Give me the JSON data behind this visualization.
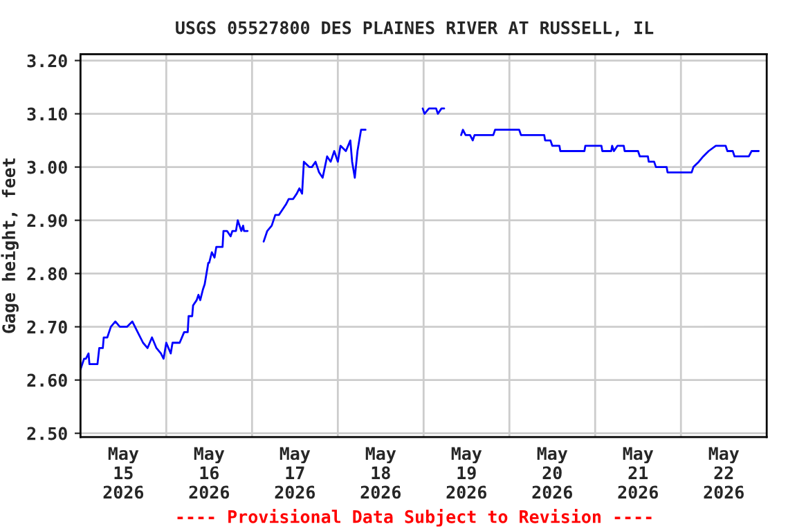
{
  "chart_data": {
    "type": "line",
    "title": "USGS 05527800 DES PLAINES RIVER AT RUSSELL, IL",
    "ylabel": "Gage height, feet",
    "annotations": [
      "---- Provisional Data Subject to Revision ----"
    ],
    "x": [
      "2026-05-15T00:00",
      "2026-05-15T01:00",
      "2026-05-15T01:30",
      "2026-05-15T02:15",
      "2026-05-15T02:30",
      "2026-05-15T04:45",
      "2026-05-15T05:15",
      "2026-05-15T06:15",
      "2026-05-15T06:30",
      "2026-05-15T07:30",
      "2026-05-15T08:30",
      "2026-05-15T09:45",
      "2026-05-15T11:00",
      "2026-05-15T13:00",
      "2026-05-15T14:30",
      "2026-05-15T16:00",
      "2026-05-15T17:30",
      "2026-05-15T18:45",
      "2026-05-15T20:00",
      "2026-05-15T21:15",
      "2026-05-15T22:30",
      "2026-05-15T23:15",
      "2026-05-16T00:00",
      "2026-05-16T01:15",
      "2026-05-16T01:45",
      "2026-05-16T03:45",
      "2026-05-16T05:00",
      "2026-05-16T06:00",
      "2026-05-16T06:15",
      "2026-05-16T07:15",
      "2026-05-16T07:30",
      "2026-05-16T08:30",
      "2026-05-16T09:00",
      "2026-05-16T09:30",
      "2026-05-16T10:15",
      "2026-05-16T10:45",
      "2026-05-16T11:45",
      "2026-05-16T12:00",
      "2026-05-16T12:45",
      "2026-05-16T13:30",
      "2026-05-16T14:00",
      "2026-05-16T15:00",
      "2026-05-16T15:45",
      "2026-05-16T16:00",
      "2026-05-16T17:00",
      "2026-05-16T18:00",
      "2026-05-16T18:30",
      "2026-05-16T19:30",
      "2026-05-16T20:00",
      "2026-05-16T21:00",
      "2026-05-16T21:30",
      "2026-05-16T21:45",
      "2026-05-16T22:45",
      "2026-05-17T01:00",
      "2026-05-17T03:15",
      "2026-05-17T04:15",
      "2026-05-17T05:30",
      "2026-05-17T06:30",
      "2026-05-17T07:30",
      "2026-05-17T08:30",
      "2026-05-17T09:30",
      "2026-05-17T10:15",
      "2026-05-17T11:30",
      "2026-05-17T12:30",
      "2026-05-17T13:15",
      "2026-05-17T14:00",
      "2026-05-17T14:30",
      "2026-05-17T16:00",
      "2026-05-17T16:45",
      "2026-05-17T17:45",
      "2026-05-17T18:45",
      "2026-05-17T19:45",
      "2026-05-17T21:00",
      "2026-05-17T22:00",
      "2026-05-17T23:00",
      "2026-05-18T00:00",
      "2026-05-18T00:45",
      "2026-05-18T02:15",
      "2026-05-18T03:30",
      "2026-05-18T04:00",
      "2026-05-18T04:45",
      "2026-05-18T05:30",
      "2026-05-18T06:00",
      "2026-05-18T06:30",
      "2026-05-18T07:45",
      "2026-05-18T12:00",
      "2026-05-18T23:45",
      "2026-05-19T00:15",
      "2026-05-19T01:30",
      "2026-05-19T03:30",
      "2026-05-19T04:00",
      "2026-05-19T05:00",
      "2026-05-19T05:45",
      "2026-05-19T08:00",
      "2026-05-19T10:30",
      "2026-05-19T11:00",
      "2026-05-19T11:45",
      "2026-05-19T13:00",
      "2026-05-19T13:45",
      "2026-05-19T14:15",
      "2026-05-19T19:30",
      "2026-05-19T20:00",
      "2026-05-20T02:45",
      "2026-05-20T03:15",
      "2026-05-20T09:45",
      "2026-05-20T10:00",
      "2026-05-20T11:30",
      "2026-05-20T12:00",
      "2026-05-20T14:00",
      "2026-05-20T14:15",
      "2026-05-20T21:00",
      "2026-05-20T21:15",
      "2026-05-21T01:45",
      "2026-05-21T02:00",
      "2026-05-21T04:30",
      "2026-05-21T04:45",
      "2026-05-21T05:15",
      "2026-05-21T06:15",
      "2026-05-21T08:00",
      "2026-05-21T08:15",
      "2026-05-21T12:00",
      "2026-05-21T12:30",
      "2026-05-21T14:45",
      "2026-05-21T15:00",
      "2026-05-21T16:30",
      "2026-05-21T17:00",
      "2026-05-21T20:00",
      "2026-05-21T20:15",
      "2026-05-22T03:00",
      "2026-05-22T03:30",
      "2026-05-22T05:00",
      "2026-05-22T06:15",
      "2026-05-22T07:45",
      "2026-05-22T09:45",
      "2026-05-22T12:30",
      "2026-05-22T13:00",
      "2026-05-22T14:30",
      "2026-05-22T15:00",
      "2026-05-22T19:00",
      "2026-05-22T19:45",
      "2026-05-22T21:45"
    ],
    "series": [
      {
        "color": "#0000ff",
        "values": [
          2.62,
          2.64,
          2.64,
          2.65,
          2.63,
          2.63,
          2.66,
          2.66,
          2.68,
          2.68,
          2.7,
          2.71,
          2.7,
          2.7,
          2.71,
          2.69,
          2.67,
          2.66,
          2.68,
          2.66,
          2.65,
          2.64,
          2.67,
          2.65,
          2.67,
          2.67,
          2.69,
          2.69,
          2.72,
          2.72,
          2.74,
          2.75,
          2.76,
          2.75,
          2.77,
          2.78,
          2.82,
          2.82,
          2.84,
          2.83,
          2.85,
          2.85,
          2.85,
          2.88,
          2.88,
          2.87,
          2.88,
          2.88,
          2.9,
          2.88,
          2.89,
          2.88,
          2.88,
          null,
          2.86,
          2.88,
          2.89,
          2.91,
          2.91,
          2.92,
          2.93,
          2.94,
          2.94,
          2.95,
          2.96,
          2.95,
          3.01,
          3.0,
          3.0,
          3.01,
          2.99,
          2.98,
          3.02,
          3.01,
          3.03,
          3.01,
          3.04,
          3.03,
          3.05,
          3.01,
          2.98,
          3.03,
          3.05,
          3.07,
          3.07,
          null,
          3.11,
          3.1,
          3.11,
          3.11,
          3.1,
          3.11,
          3.11,
          null,
          3.06,
          3.07,
          3.06,
          3.06,
          3.05,
          3.06,
          3.06,
          3.07,
          3.07,
          3.06,
          3.06,
          3.05,
          3.05,
          3.04,
          3.04,
          3.03,
          3.03,
          3.04,
          3.04,
          3.03,
          3.03,
          3.04,
          3.03,
          3.04,
          3.04,
          3.03,
          3.03,
          3.02,
          3.02,
          3.01,
          3.01,
          3.0,
          3.0,
          2.99,
          2.99,
          3.0,
          3.01,
          3.02,
          3.03,
          3.04,
          3.04,
          3.03,
          3.03,
          3.02,
          3.02,
          3.03,
          3.03
        ]
      }
    ],
    "xlim": [
      "2026-05-15T00:00",
      "2026-05-23T00:00"
    ],
    "xticks": [
      {
        "value": "2026-05-15T12:00",
        "label": "May\n15\n2026"
      },
      {
        "value": "2026-05-16T00:00",
        "label": null
      },
      {
        "value": "2026-05-16T12:00",
        "label": "May\n16\n2026"
      },
      {
        "value": "2026-05-17T00:00",
        "label": null
      },
      {
        "value": "2026-05-17T12:00",
        "label": "May\n17\n2026"
      },
      {
        "value": "2026-05-18T00:00",
        "label": null
      },
      {
        "value": "2026-05-18T12:00",
        "label": "May\n18\n2026"
      },
      {
        "value": "2026-05-19T00:00",
        "label": null
      },
      {
        "value": "2026-05-19T12:00",
        "label": "May\n19\n2026"
      },
      {
        "value": "2026-05-20T00:00",
        "label": null
      },
      {
        "value": "2026-05-20T12:00",
        "label": "May\n20\n2026"
      },
      {
        "value": "2026-05-21T00:00",
        "label": null
      },
      {
        "value": "2026-05-21T12:00",
        "label": "May\n21\n2026"
      },
      {
        "value": "2026-05-22T00:00",
        "label": null
      },
      {
        "value": "2026-05-22T12:00",
        "label": "May\n22\n2026"
      }
    ],
    "ylim": [
      2.493,
      3.212
    ],
    "yticks": [
      {
        "value": 2.5,
        "label": "2.50"
      },
      {
        "value": 2.6,
        "label": "2.60"
      },
      {
        "value": 2.7,
        "label": "2.70"
      },
      {
        "value": 2.8,
        "label": "2.80"
      },
      {
        "value": 2.9,
        "label": "2.90"
      },
      {
        "value": 3.0,
        "label": "3.00"
      },
      {
        "value": 3.1,
        "label": "3.10"
      },
      {
        "value": 3.2,
        "label": "3.20"
      }
    ],
    "grid": true,
    "marker": "none",
    "line_style": "solid"
  }
}
